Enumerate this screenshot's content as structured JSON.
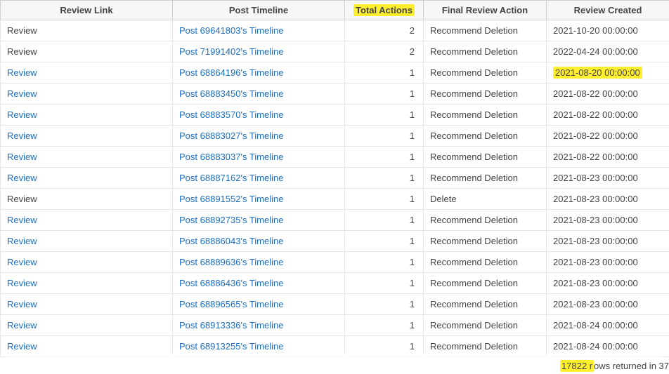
{
  "colors": {
    "link": "#1b6ec2",
    "highlight": "#ffef2e",
    "header_bg": "#f7f7f7",
    "border": "#d0d0d0",
    "row_border": "#e6e6e6",
    "text": "#444444"
  },
  "columns": {
    "review_link": "Review Link",
    "post_timeline": "Post Timeline",
    "total_actions": "Total Actions",
    "final_review_action": "Final Review Action",
    "review_created": "Review Created"
  },
  "highlight": {
    "header_col": "total_actions",
    "row_index_created": 2
  },
  "rows": [
    {
      "review": "Review",
      "review_link": false,
      "timeline": "Post 69641803's Timeline",
      "actions": 2,
      "final": "Recommend Deletion",
      "created": "2021-10-20 00:00:00"
    },
    {
      "review": "Review",
      "review_link": false,
      "timeline": "Post 71991402's Timeline",
      "actions": 2,
      "final": "Recommend Deletion",
      "created": "2022-04-24 00:00:00"
    },
    {
      "review": "Review",
      "review_link": true,
      "timeline": "Post 68864196's Timeline",
      "actions": 1,
      "final": "Recommend Deletion",
      "created": "2021-08-20 00:00:00"
    },
    {
      "review": "Review",
      "review_link": true,
      "timeline": "Post 68883450's Timeline",
      "actions": 1,
      "final": "Recommend Deletion",
      "created": "2021-08-22 00:00:00"
    },
    {
      "review": "Review",
      "review_link": true,
      "timeline": "Post 68883570's Timeline",
      "actions": 1,
      "final": "Recommend Deletion",
      "created": "2021-08-22 00:00:00"
    },
    {
      "review": "Review",
      "review_link": true,
      "timeline": "Post 68883027's Timeline",
      "actions": 1,
      "final": "Recommend Deletion",
      "created": "2021-08-22 00:00:00"
    },
    {
      "review": "Review",
      "review_link": true,
      "timeline": "Post 68883037's Timeline",
      "actions": 1,
      "final": "Recommend Deletion",
      "created": "2021-08-22 00:00:00"
    },
    {
      "review": "Review",
      "review_link": true,
      "timeline": "Post 68887162's Timeline",
      "actions": 1,
      "final": "Recommend Deletion",
      "created": "2021-08-23 00:00:00"
    },
    {
      "review": "Review",
      "review_link": false,
      "timeline": "Post 68891552's Timeline",
      "actions": 1,
      "final": "Delete",
      "created": "2021-08-23 00:00:00"
    },
    {
      "review": "Review",
      "review_link": true,
      "timeline": "Post 68892735's Timeline",
      "actions": 1,
      "final": "Recommend Deletion",
      "created": "2021-08-23 00:00:00"
    },
    {
      "review": "Review",
      "review_link": true,
      "timeline": "Post 68886043's Timeline",
      "actions": 1,
      "final": "Recommend Deletion",
      "created": "2021-08-23 00:00:00"
    },
    {
      "review": "Review",
      "review_link": true,
      "timeline": "Post 68889636's Timeline",
      "actions": 1,
      "final": "Recommend Deletion",
      "created": "2021-08-23 00:00:00"
    },
    {
      "review": "Review",
      "review_link": true,
      "timeline": "Post 68886436's Timeline",
      "actions": 1,
      "final": "Recommend Deletion",
      "created": "2021-08-23 00:00:00"
    },
    {
      "review": "Review",
      "review_link": true,
      "timeline": "Post 68896565's Timeline",
      "actions": 1,
      "final": "Recommend Deletion",
      "created": "2021-08-23 00:00:00"
    },
    {
      "review": "Review",
      "review_link": true,
      "timeline": "Post 68913336's Timeline",
      "actions": 1,
      "final": "Recommend Deletion",
      "created": "2021-08-24 00:00:00"
    },
    {
      "review": "Review",
      "review_link": true,
      "timeline": "Post 68913255's Timeline",
      "actions": 1,
      "final": "Recommend Deletion",
      "created": "2021-08-24 00:00:00"
    }
  ],
  "status": {
    "count": "17822",
    "prefix": " r",
    "rest": "ows returned in 37"
  }
}
